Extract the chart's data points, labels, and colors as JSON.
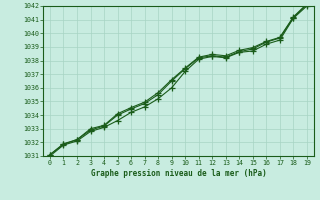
{
  "title": "Graphe pression niveau de la mer (hPa)",
  "x": [
    0,
    1,
    2,
    3,
    4,
    5,
    6,
    7,
    8,
    9,
    10,
    11,
    12,
    13,
    14,
    15,
    16,
    17,
    18,
    19
  ],
  "line1": [
    1031.0,
    1031.8,
    1032.1,
    1032.8,
    1033.1,
    1033.6,
    1034.2,
    1034.6,
    1035.2,
    1036.0,
    1037.2,
    1038.1,
    1038.3,
    1038.2,
    1038.6,
    1038.7,
    1039.2,
    1039.5,
    1041.1,
    1042.0
  ],
  "line2": [
    1031.1,
    1031.85,
    1032.2,
    1032.9,
    1033.2,
    1034.0,
    1034.45,
    1034.85,
    1035.5,
    1036.5,
    1037.4,
    1038.2,
    1038.35,
    1038.25,
    1038.65,
    1038.85,
    1039.35,
    1039.65,
    1041.15,
    1042.1
  ],
  "line3": [
    1031.1,
    1031.9,
    1032.2,
    1033.0,
    1033.25,
    1034.1,
    1034.55,
    1034.95,
    1035.65,
    1036.6,
    1037.45,
    1038.25,
    1038.45,
    1038.35,
    1038.75,
    1038.95,
    1039.4,
    1039.7,
    1041.2,
    1042.15
  ],
  "line_color": "#1a5c1a",
  "bg_color": "#c8ece0",
  "grid_color": "#a8d4c4",
  "ylim": [
    1031,
    1042
  ],
  "xlim": [
    -0.5,
    19.5
  ],
  "yticks": [
    1031,
    1032,
    1033,
    1034,
    1035,
    1036,
    1037,
    1038,
    1039,
    1040,
    1041,
    1042
  ],
  "xticks": [
    0,
    1,
    2,
    3,
    4,
    5,
    6,
    7,
    8,
    9,
    10,
    11,
    12,
    13,
    14,
    15,
    16,
    17,
    18,
    19
  ],
  "marker": "+",
  "markersize": 4,
  "linewidth": 0.8
}
